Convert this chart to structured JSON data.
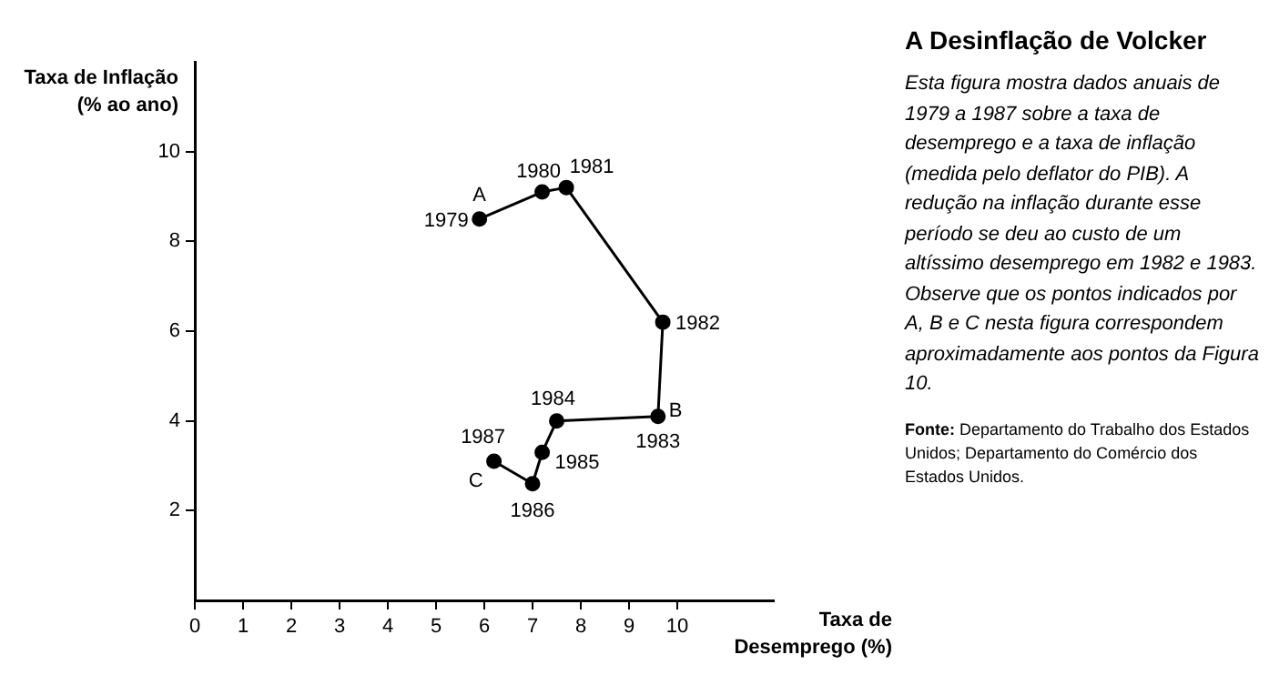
{
  "chart_data": {
    "type": "line",
    "title": "A Desinflação de Volcker",
    "subtitle": "Esta figura mostra dados anuais de 1979 a 1987 sobre a taxa de desemprego e a taxa de inflação (medida pelo deflator do PIB). A redução na inflação durante esse período se deu ao custo de um altíssimo desemprego em 1982 e 1983. Observe que os pontos indicados por A, B e C nesta figura correspondem aproximadamente aos pontos da Figura 10.",
    "xlabel": "Taxa de Desemprego (%)",
    "ylabel": "Taxa de Inflação (% ao ano)",
    "x": [
      5.9,
      7.2,
      7.7,
      9.7,
      9.6,
      7.5,
      7.2,
      7.0,
      6.2
    ],
    "series": [
      {
        "color": "#000000",
        "values": [
          8.5,
          9.1,
          9.2,
          6.2,
          4.1,
          4.0,
          3.3,
          2.6,
          3.1
        ]
      }
    ],
    "xlim": [
      0,
      12
    ],
    "xticks": [
      0,
      1,
      2,
      3,
      4,
      5,
      6,
      7,
      8,
      9,
      10
    ],
    "ylim": [
      0,
      12
    ],
    "yticks": [
      2,
      4,
      6,
      8,
      10
    ],
    "marker": "circle",
    "line_style": "solid",
    "grid": false,
    "legend": false,
    "annotations": [
      {
        "text": "1979",
        "x": 5.9,
        "y": 8.5
      },
      {
        "text": "1980",
        "x": 7.2,
        "y": 9.1
      },
      {
        "text": "1981",
        "x": 7.7,
        "y": 9.2
      },
      {
        "text": "1982",
        "x": 9.7,
        "y": 6.2
      },
      {
        "text": "1983",
        "x": 9.6,
        "y": 4.1
      },
      {
        "text": "1984",
        "x": 7.5,
        "y": 4.0
      },
      {
        "text": "1985",
        "x": 7.2,
        "y": 3.3
      },
      {
        "text": "1986",
        "x": 7.0,
        "y": 2.6
      },
      {
        "text": "1987",
        "x": 6.2,
        "y": 3.1
      },
      {
        "text": "A",
        "x": 5.9,
        "y": 8.5
      },
      {
        "text": "B",
        "x": 9.6,
        "y": 4.1
      },
      {
        "text": "C",
        "x": 6.2,
        "y": 3.1
      },
      "Fonte: Departamento do Trabalho dos Estados Unidos; Departamento do Comércio dos Estados Unidos."
    ]
  }
}
